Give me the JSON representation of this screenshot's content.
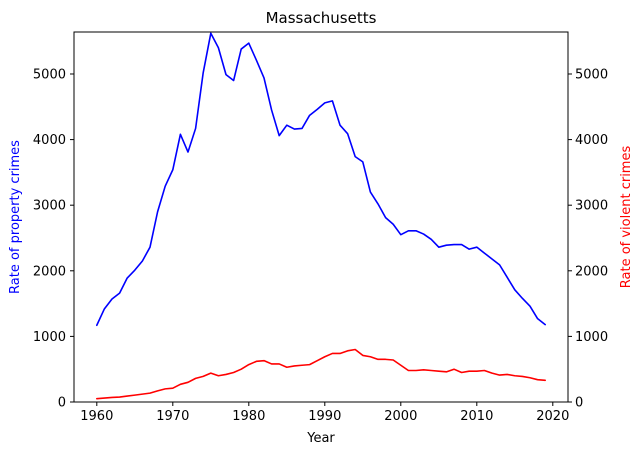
{
  "chart_data": {
    "type": "line",
    "title": "Massachusetts",
    "xlabel": "Year",
    "ylabel_left": "Rate of property crimes",
    "ylabel_right": "Rate of violent crimes",
    "xlim": [
      1957,
      2022
    ],
    "ylim": [
      0,
      5640
    ],
    "x_ticks": [
      1960,
      1970,
      1980,
      1990,
      2000,
      2010,
      2020
    ],
    "y_ticks": [
      0,
      1000,
      2000,
      3000,
      4000,
      5000
    ],
    "grid": false,
    "colors": {
      "property": "#0000ff",
      "violent": "#ff0000"
    },
    "x": [
      1960,
      1961,
      1962,
      1963,
      1964,
      1965,
      1966,
      1967,
      1968,
      1969,
      1970,
      1971,
      1972,
      1973,
      1974,
      1975,
      1976,
      1977,
      1978,
      1979,
      1980,
      1981,
      1982,
      1983,
      1984,
      1985,
      1986,
      1987,
      1988,
      1989,
      1990,
      1991,
      1992,
      1993,
      1994,
      1995,
      1996,
      1997,
      1998,
      1999,
      2000,
      2001,
      2002,
      2003,
      2004,
      2005,
      2006,
      2007,
      2008,
      2009,
      2010,
      2011,
      2012,
      2013,
      2014,
      2015,
      2016,
      2017,
      2018,
      2019
    ],
    "series": [
      {
        "axis": "left",
        "values": [
          1170,
          1420,
          1570,
          1660,
          1890,
          2010,
          2150,
          2360,
          2900,
          3290,
          3540,
          4080,
          3810,
          4170,
          5020,
          5620,
          5400,
          4990,
          4900,
          5380,
          5470,
          5210,
          4940,
          4450,
          4060,
          4220,
          4160,
          4170,
          4370,
          4460,
          4560,
          4590,
          4220,
          4090,
          3740,
          3660,
          3200,
          3020,
          2810,
          2710,
          2550,
          2610,
          2610,
          2560,
          2480,
          2360,
          2390,
          2400,
          2400,
          2330,
          2360,
          2270,
          2180,
          2090,
          1900,
          1710,
          1580,
          1460,
          1270,
          1180
        ]
      },
      {
        "axis": "right",
        "values": [
          50,
          60,
          70,
          75,
          90,
          105,
          120,
          135,
          170,
          200,
          210,
          270,
          300,
          360,
          390,
          440,
          400,
          420,
          450,
          500,
          570,
          620,
          630,
          580,
          580,
          530,
          550,
          560,
          570,
          630,
          690,
          740,
          740,
          780,
          800,
          710,
          690,
          650,
          650,
          640,
          560,
          480,
          480,
          490,
          480,
          470,
          460,
          500,
          450,
          470,
          470,
          480,
          440,
          410,
          420,
          400,
          390,
          370,
          340,
          330
        ]
      }
    ]
  }
}
